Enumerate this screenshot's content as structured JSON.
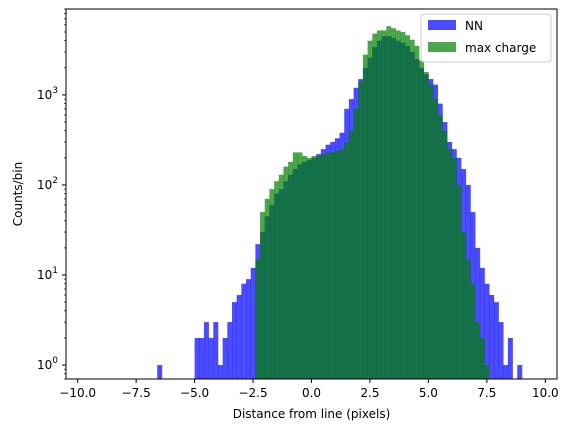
{
  "chart_data": {
    "type": "bar",
    "subtype": "histogram",
    "xlabel": "Distance from line (pixels)",
    "ylabel": "Counts/bin",
    "yscale": "log",
    "xlim": [
      -10.5,
      10.5
    ],
    "ylim": [
      0.7,
      9000
    ],
    "x_ticks": [
      -10.0,
      -7.5,
      -5.0,
      -2.5,
      0.0,
      2.5,
      5.0,
      7.5,
      10.0
    ],
    "x_tick_labels": [
      "−10.0",
      "−7.5",
      "−5.0",
      "−2.5",
      "0.0",
      "2.5",
      "5.0",
      "7.5",
      "10.0"
    ],
    "y_ticks": [
      1,
      10,
      100,
      1000
    ],
    "y_tick_exponents": [
      "0",
      "1",
      "2",
      "3"
    ],
    "y_tick_base": "10",
    "bins": {
      "start": -10.0,
      "width": 0.2
    },
    "legend": {
      "placement": "top-right"
    },
    "series": [
      {
        "name": "NN",
        "color": "#0000ff",
        "opacity": 0.7,
        "values": [
          0,
          0,
          0,
          0,
          0,
          0,
          0,
          0,
          0,
          0,
          0,
          0,
          0,
          0,
          0,
          0,
          0,
          1,
          0,
          0,
          0,
          0,
          0,
          0,
          0,
          2,
          2,
          3,
          2,
          3,
          1,
          2,
          3,
          5,
          6,
          8,
          9,
          12,
          22,
          30,
          45,
          60,
          80,
          90,
          110,
          130,
          150,
          170,
          180,
          190,
          200,
          220,
          250,
          280,
          300,
          330,
          380,
          700,
          900,
          1200,
          1500,
          2000,
          2600,
          3400,
          4000,
          4500,
          4500,
          4300,
          4000,
          3800,
          3500,
          3000,
          2500,
          2000,
          1700,
          1500,
          1300,
          800,
          500,
          300,
          250,
          200,
          150,
          100,
          50,
          20,
          12,
          8,
          6,
          5,
          3,
          1,
          2,
          0,
          1,
          0,
          0,
          0,
          0,
          0
        ]
      },
      {
        "name": "max charge",
        "color": "#008000",
        "opacity": 0.7,
        "values": [
          0,
          0,
          0,
          0,
          0,
          0,
          0,
          0,
          0,
          0,
          0,
          0,
          0,
          0,
          0,
          0,
          0,
          0,
          0,
          0,
          0,
          0,
          0,
          0,
          0,
          0,
          0,
          0,
          0,
          0,
          0,
          0,
          0,
          0,
          0,
          0,
          0,
          0,
          15,
          50,
          70,
          90,
          110,
          130,
          160,
          180,
          230,
          230,
          210,
          200,
          210,
          210,
          220,
          230,
          230,
          240,
          250,
          300,
          400,
          700,
          1400,
          2800,
          4000,
          4800,
          5200,
          5200,
          5800,
          5500,
          5200,
          5000,
          4600,
          4100,
          3500,
          2400,
          1800,
          1300,
          900,
          600,
          400,
          250,
          200,
          100,
          30,
          15,
          8,
          3,
          2,
          1,
          0,
          0,
          0,
          0,
          0,
          0,
          0,
          0,
          0,
          0,
          0,
          0
        ]
      }
    ]
  }
}
